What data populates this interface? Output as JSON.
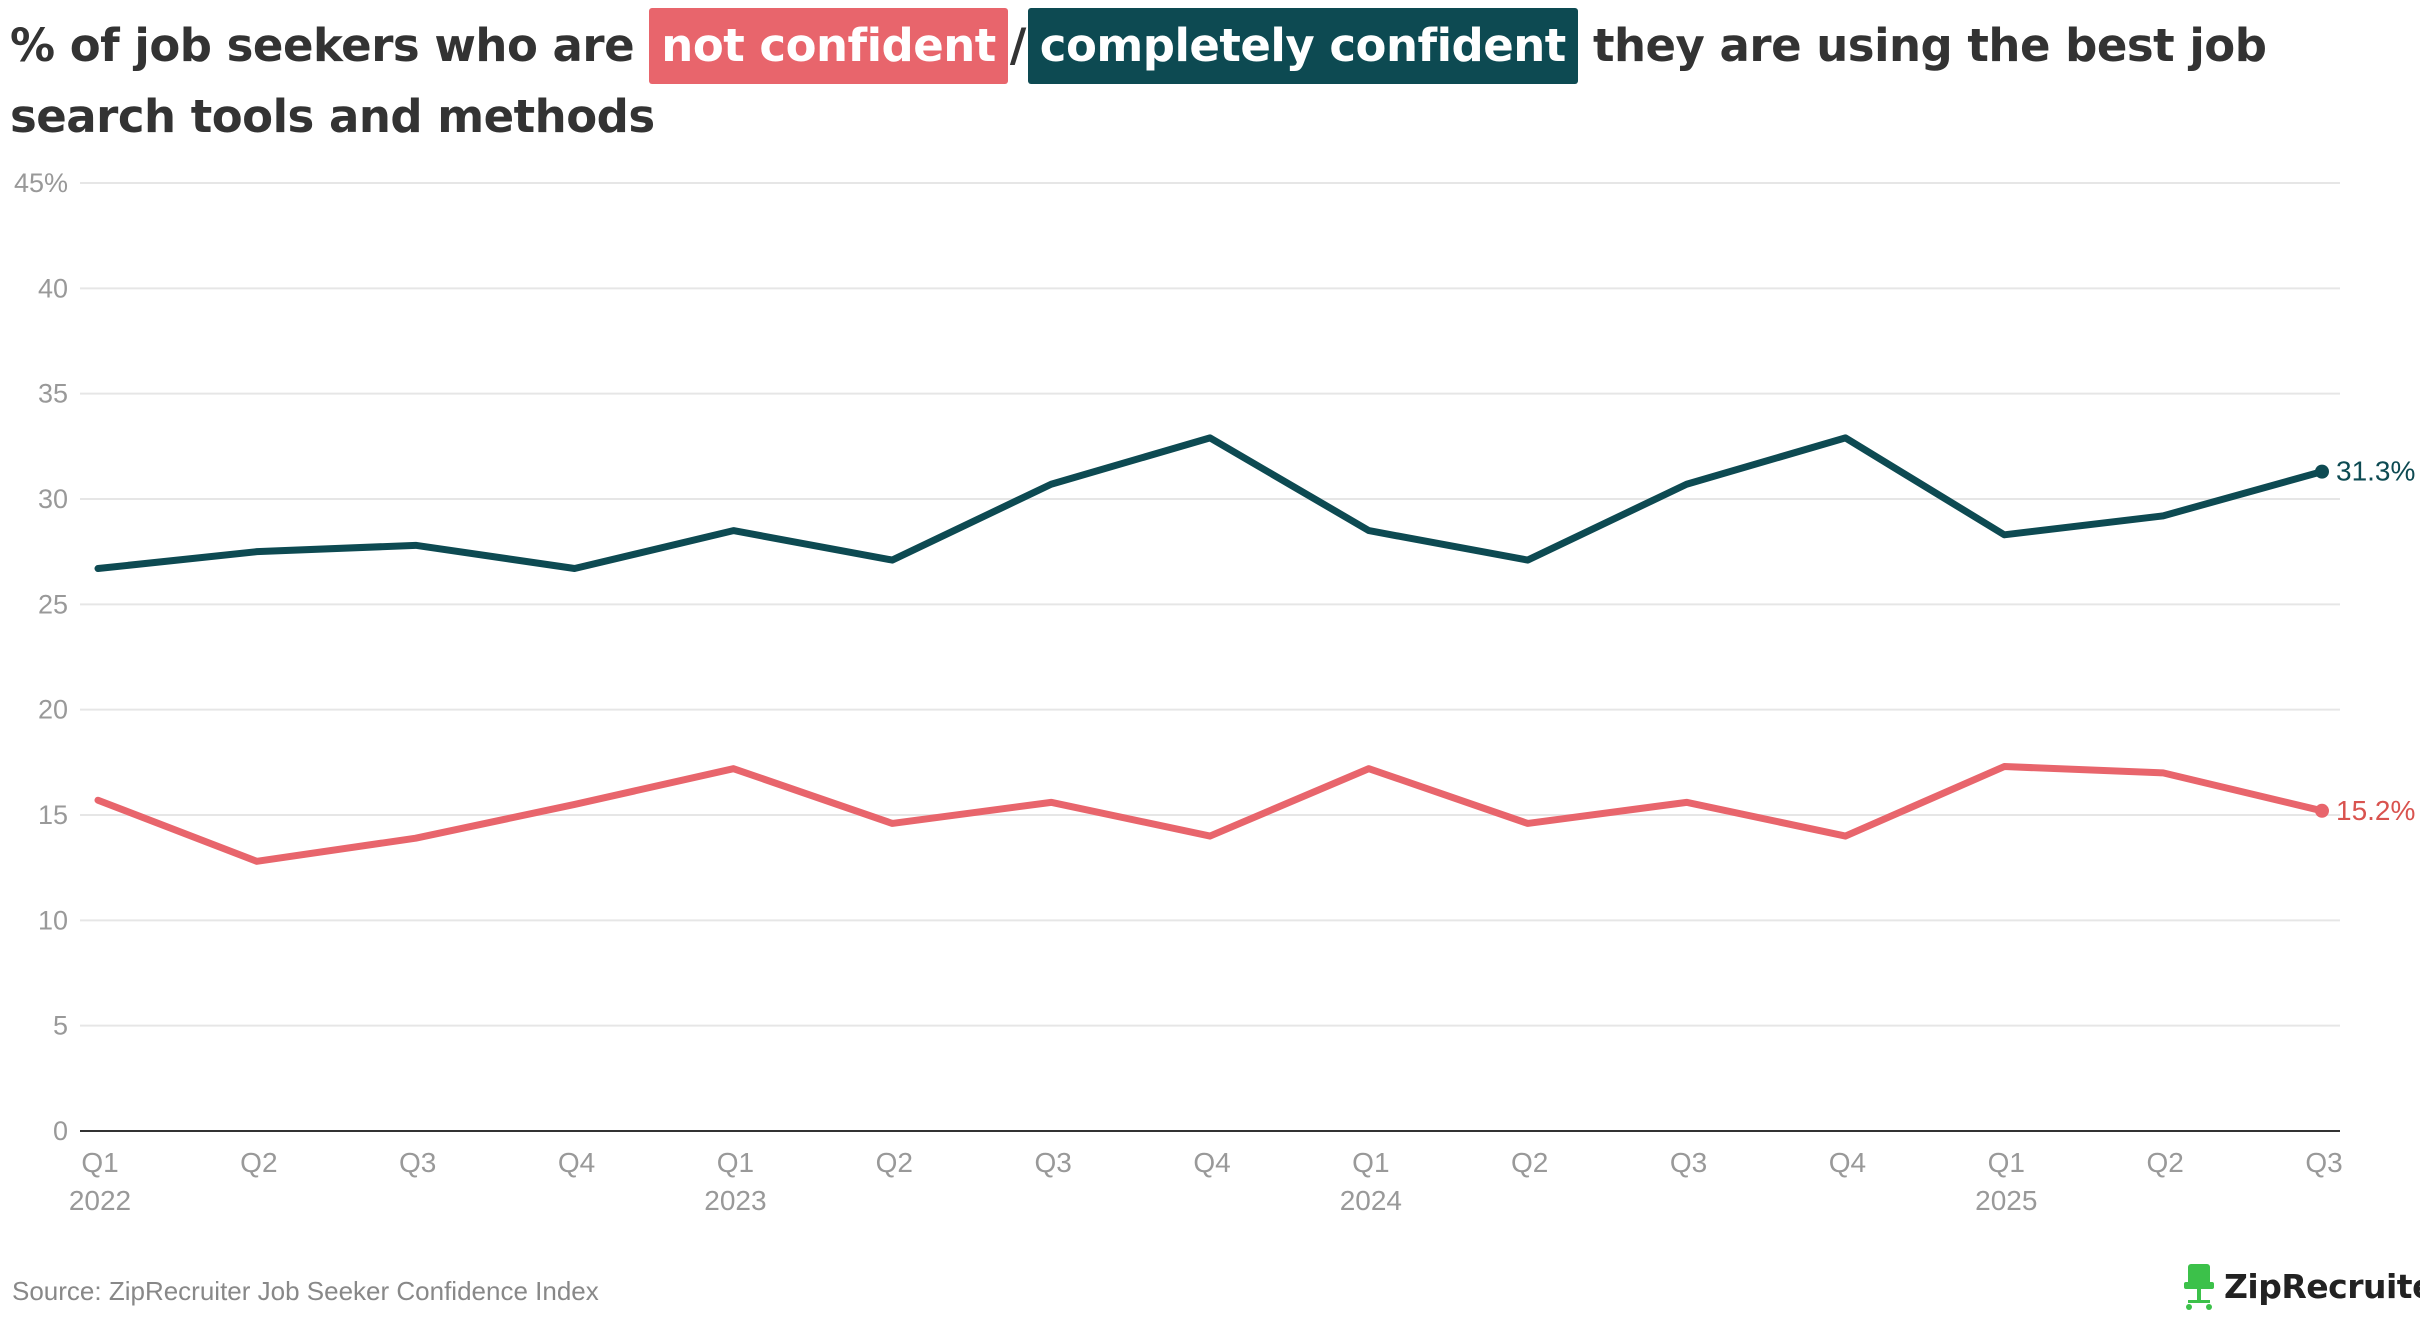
{
  "title": {
    "prefix": "% of job seekers who are",
    "label_negative": "not confident",
    "separator": "/",
    "label_positive": "completely confident",
    "suffix": "they are using the best job search tools and methods"
  },
  "source": "Source: ZipRecruiter Job Seeker Confidence Index",
  "logo": {
    "text": "ZipRecruiter",
    "reg": "®",
    "icon": "chair-icon"
  },
  "colors": {
    "negative": "#e8656c",
    "positive": "#0d4a52",
    "negative_label": "#d9534f",
    "grid": "#e6e6e6",
    "axis": "#333333",
    "tick_text": "#999999"
  },
  "chart_data": {
    "type": "line",
    "categories": [
      "Q1",
      "Q2",
      "Q3",
      "Q4",
      "Q1",
      "Q2",
      "Q3",
      "Q4",
      "Q1",
      "Q2",
      "Q3",
      "Q4",
      "Q1",
      "Q2",
      "Q3"
    ],
    "year_labels": [
      "2022",
      "",
      "",
      "",
      "2023",
      "",
      "",
      "",
      "2024",
      "",
      "",
      "",
      "2025",
      "",
      ""
    ],
    "y_ticks": [
      "0",
      "5",
      "10",
      "15",
      "20",
      "25",
      "30",
      "35",
      "40",
      "45%"
    ],
    "ylim": [
      0,
      45
    ],
    "grid": true,
    "series": [
      {
        "name": "completely confident",
        "color": "#0d4a52",
        "values": [
          26.7,
          27.5,
          27.8,
          26.7,
          28.5,
          27.1,
          30.7,
          32.9,
          28.5,
          27.1,
          30.7,
          32.9,
          28.3,
          29.2,
          31.3
        ],
        "end_label": "31.3%"
      },
      {
        "name": "not confident",
        "color": "#e8656c",
        "values": [
          15.7,
          12.8,
          13.9,
          15.5,
          17.2,
          14.6,
          15.6,
          14.0,
          17.2,
          14.6,
          15.6,
          14.0,
          17.3,
          17.0,
          15.2
        ],
        "end_label": "15.2%"
      }
    ]
  }
}
